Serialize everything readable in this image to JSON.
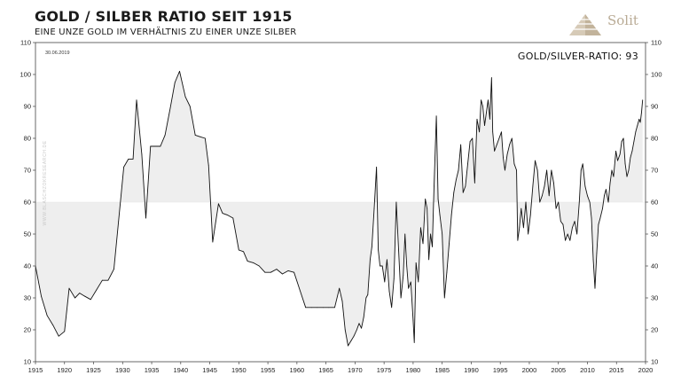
{
  "header": {
    "title": "GOLD / SILBER RATIO SEIT 1915",
    "subtitle": "EINE UNZE GOLD IM VERHÄLTNIS ZU EINER UNZE SILBER",
    "logo_text": "Solit",
    "logo_icon": "pyramid-icon"
  },
  "colors": {
    "line": "#111111",
    "fill": "#eeeeee",
    "logo": "#c5b9a6"
  },
  "chart_data": {
    "type": "line",
    "title": "GOLD / SILBER RATIO SEIT 1915",
    "subtitle": "EINE UNZE GOLD IM VERHÄLTNIS ZU EINER UNZE SILBER",
    "xlabel": "",
    "ylabel": "",
    "xlim": [
      1915,
      2020
    ],
    "ylim": [
      10,
      110
    ],
    "x_ticks": [
      1915,
      1920,
      1925,
      1930,
      1935,
      1940,
      1945,
      1950,
      1955,
      1960,
      1965,
      1970,
      1975,
      1980,
      1985,
      1990,
      1995,
      2000,
      2005,
      2010,
      2015,
      2020
    ],
    "y_ticks": [
      10,
      20,
      30,
      40,
      50,
      60,
      70,
      80,
      90,
      100,
      110
    ],
    "grid": false,
    "y_axis_both_sides": true,
    "reference_level": 60,
    "fill_to_reference": true,
    "annotations": {
      "date": "30.06.2019",
      "current_ratio": "GOLD/SILVER-RATIO: 93",
      "watermark": "WWW.BLASCHZOKRESEARCH.DE"
    },
    "series": [
      {
        "values": [
          [
            1915,
            40
          ],
          [
            1916,
            30.5
          ],
          [
            1917,
            24.5
          ],
          [
            1918,
            21.5
          ],
          [
            1919,
            18
          ],
          [
            1920,
            19.5
          ],
          [
            1920.8,
            33
          ],
          [
            1921.8,
            30
          ],
          [
            1922.6,
            31.5
          ],
          [
            1923.5,
            30.5
          ],
          [
            1924.5,
            29.5
          ],
          [
            1925.5,
            32.5
          ],
          [
            1926.5,
            35.5
          ],
          [
            1927.5,
            35.5
          ],
          [
            1928.5,
            39
          ],
          [
            1929.3,
            54
          ],
          [
            1930.2,
            71
          ],
          [
            1931,
            73.5
          ],
          [
            1931.8,
            73.5
          ],
          [
            1932.4,
            92
          ],
          [
            1933.3,
            75
          ],
          [
            1934,
            55
          ],
          [
            1934.8,
            77.5
          ],
          [
            1935.5,
            77.5
          ],
          [
            1936.5,
            77.5
          ],
          [
            1937.3,
            81
          ],
          [
            1938.2,
            89.5
          ],
          [
            1939,
            97.5
          ],
          [
            1939.8,
            101
          ],
          [
            1940.8,
            93
          ],
          [
            1941.6,
            90
          ],
          [
            1942.5,
            81
          ],
          [
            1943.3,
            80.5
          ],
          [
            1944.2,
            80
          ],
          [
            1944.8,
            71.5
          ],
          [
            1945.5,
            47.5
          ],
          [
            1946.5,
            59.5
          ],
          [
            1947.2,
            56.5
          ],
          [
            1948,
            56
          ],
          [
            1949,
            55
          ],
          [
            1950,
            45
          ],
          [
            1950.8,
            44.5
          ],
          [
            1951.5,
            41.5
          ],
          [
            1952.5,
            41
          ],
          [
            1953.5,
            40
          ],
          [
            1954.5,
            38
          ],
          [
            1955.5,
            38
          ],
          [
            1956.5,
            39
          ],
          [
            1957.5,
            37.5
          ],
          [
            1958.5,
            38.5
          ],
          [
            1959.5,
            38
          ],
          [
            1960.5,
            32.5
          ],
          [
            1961.5,
            27
          ],
          [
            1962.5,
            27
          ],
          [
            1963.5,
            27
          ],
          [
            1964.5,
            27
          ],
          [
            1965.5,
            27
          ],
          [
            1966.5,
            27
          ],
          [
            1967.3,
            33
          ],
          [
            1967.8,
            29
          ],
          [
            1968.3,
            20
          ],
          [
            1968.8,
            15
          ],
          [
            1969.3,
            16.5
          ],
          [
            1969.8,
            18
          ],
          [
            1970.3,
            20
          ],
          [
            1970.7,
            22
          ],
          [
            1971.1,
            20.5
          ],
          [
            1971.5,
            24
          ],
          [
            1971.9,
            30
          ],
          [
            1972.2,
            31
          ],
          [
            1972.6,
            42
          ],
          [
            1972.9,
            46
          ],
          [
            1973.3,
            58
          ],
          [
            1973.7,
            71
          ],
          [
            1974.0,
            45
          ],
          [
            1974.3,
            40
          ],
          [
            1974.7,
            40
          ],
          [
            1975.1,
            35
          ],
          [
            1975.5,
            42
          ],
          [
            1975.9,
            32
          ],
          [
            1976.3,
            27
          ],
          [
            1976.7,
            36
          ],
          [
            1977.1,
            60
          ],
          [
            1977.5,
            45
          ],
          [
            1977.9,
            30
          ],
          [
            1978.3,
            37
          ],
          [
            1978.6,
            50
          ],
          [
            1978.9,
            40
          ],
          [
            1979.2,
            33
          ],
          [
            1979.6,
            35
          ],
          [
            1980.0,
            23
          ],
          [
            1980.2,
            16
          ],
          [
            1980.5,
            41
          ],
          [
            1980.9,
            35
          ],
          [
            1981.3,
            52
          ],
          [
            1981.7,
            47
          ],
          [
            1982.1,
            61
          ],
          [
            1982.4,
            58
          ],
          [
            1982.7,
            42
          ],
          [
            1983.0,
            50
          ],
          [
            1983.3,
            46
          ],
          [
            1983.6,
            65
          ],
          [
            1984.0,
            87
          ],
          [
            1984.3,
            61
          ],
          [
            1984.6,
            56
          ],
          [
            1985.0,
            50
          ],
          [
            1985.4,
            30
          ],
          [
            1985.8,
            38
          ],
          [
            1986.2,
            47
          ],
          [
            1986.6,
            56
          ],
          [
            1987.0,
            63
          ],
          [
            1987.4,
            67
          ],
          [
            1987.8,
            70
          ],
          [
            1988.2,
            78
          ],
          [
            1988.6,
            63
          ],
          [
            1989.0,
            65
          ],
          [
            1989.4,
            72
          ],
          [
            1989.8,
            79
          ],
          [
            1990.2,
            80
          ],
          [
            1990.6,
            66
          ],
          [
            1991.0,
            86
          ],
          [
            1991.4,
            82
          ],
          [
            1991.7,
            92
          ],
          [
            1992.0,
            90
          ],
          [
            1992.3,
            84
          ],
          [
            1992.6,
            88
          ],
          [
            1992.9,
            92
          ],
          [
            1993.2,
            86
          ],
          [
            1993.5,
            99
          ],
          [
            1993.7,
            82
          ],
          [
            1994.0,
            76
          ],
          [
            1994.4,
            78
          ],
          [
            1994.8,
            80
          ],
          [
            1995.2,
            82
          ],
          [
            1995.5,
            74
          ],
          [
            1995.8,
            70
          ],
          [
            1996.2,
            75
          ],
          [
            1996.6,
            78
          ],
          [
            1997.0,
            80
          ],
          [
            1997.4,
            72
          ],
          [
            1997.8,
            70
          ],
          [
            1998.0,
            48
          ],
          [
            1998.3,
            52
          ],
          [
            1998.6,
            58
          ],
          [
            1999.0,
            52
          ],
          [
            1999.4,
            60
          ],
          [
            1999.8,
            50
          ],
          [
            2000.2,
            56
          ],
          [
            2000.6,
            65
          ],
          [
            2001.0,
            73
          ],
          [
            2001.4,
            70
          ],
          [
            2001.8,
            60
          ],
          [
            2002.2,
            62
          ],
          [
            2002.6,
            65
          ],
          [
            2003.0,
            70
          ],
          [
            2003.4,
            62
          ],
          [
            2003.8,
            70
          ],
          [
            2004.2,
            66
          ],
          [
            2004.6,
            58
          ],
          [
            2005.0,
            60
          ],
          [
            2005.4,
            54
          ],
          [
            2005.8,
            53
          ],
          [
            2006.2,
            48
          ],
          [
            2006.6,
            50
          ],
          [
            2007.0,
            48
          ],
          [
            2007.4,
            52
          ],
          [
            2007.8,
            54
          ],
          [
            2008.2,
            50
          ],
          [
            2008.6,
            60
          ],
          [
            2008.9,
            70
          ],
          [
            2009.2,
            72
          ],
          [
            2009.6,
            65
          ],
          [
            2010.0,
            62
          ],
          [
            2010.4,
            60
          ],
          [
            2010.7,
            55
          ],
          [
            2011.0,
            42
          ],
          [
            2011.3,
            33
          ],
          [
            2011.6,
            44
          ],
          [
            2011.9,
            53
          ],
          [
            2012.2,
            55
          ],
          [
            2012.6,
            58
          ],
          [
            2012.9,
            62
          ],
          [
            2013.2,
            64
          ],
          [
            2013.6,
            60
          ],
          [
            2013.9,
            66
          ],
          [
            2014.2,
            70
          ],
          [
            2014.5,
            68
          ],
          [
            2014.9,
            76
          ],
          [
            2015.2,
            73
          ],
          [
            2015.6,
            75
          ],
          [
            2015.9,
            79
          ],
          [
            2016.2,
            80
          ],
          [
            2016.5,
            72
          ],
          [
            2016.8,
            68
          ],
          [
            2017.1,
            70
          ],
          [
            2017.4,
            74
          ],
          [
            2017.7,
            76
          ],
          [
            2018.0,
            79
          ],
          [
            2018.3,
            82
          ],
          [
            2018.6,
            84
          ],
          [
            2018.9,
            86
          ],
          [
            2019.1,
            85
          ],
          [
            2019.3,
            88
          ],
          [
            2019.5,
            92
          ]
        ]
      }
    ]
  }
}
